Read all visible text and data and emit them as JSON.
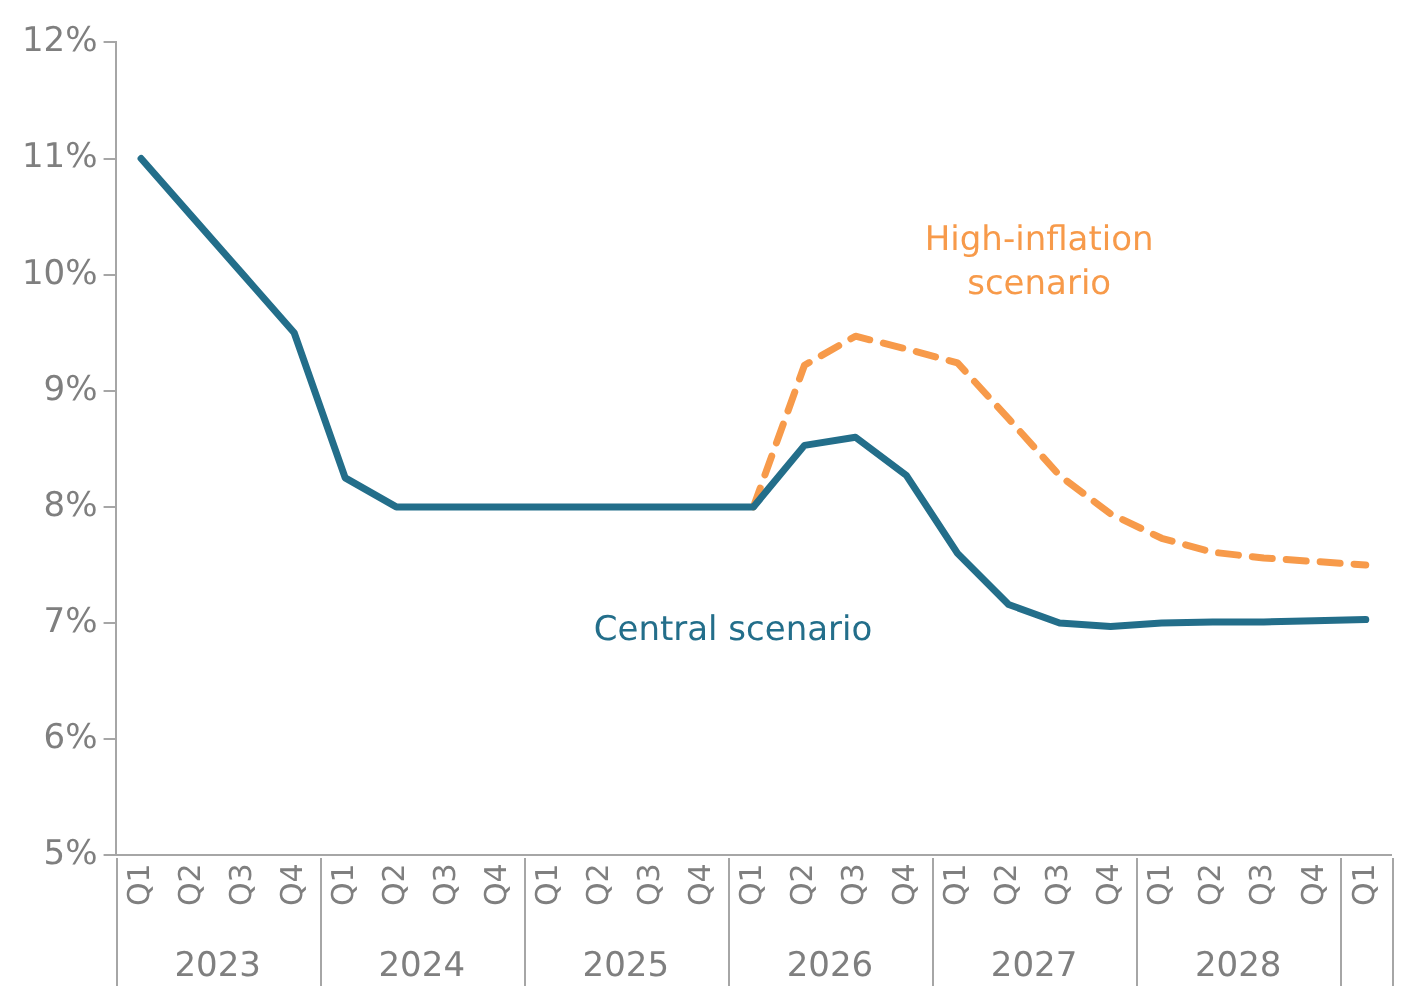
{
  "chart_data": {
    "type": "line",
    "categories": [
      "Q1",
      "Q2",
      "Q3",
      "Q4",
      "Q1",
      "Q2",
      "Q3",
      "Q4",
      "Q1",
      "Q2",
      "Q3",
      "Q4",
      "Q1",
      "Q2",
      "Q3",
      "Q4",
      "Q1",
      "Q2",
      "Q3",
      "Q4",
      "Q1",
      "Q2",
      "Q3",
      "Q4",
      "Q1"
    ],
    "annotations": [
      "2023",
      "2024",
      "2025",
      "2026",
      "2027",
      "2028"
    ],
    "series": [
      {
        "name": "Central scenario",
        "color": "#236e8a",
        "line_style": "solid",
        "values": [
          11.0,
          10.5,
          10.0,
          9.5,
          8.25,
          8.0,
          8.0,
          8.0,
          8.0,
          8.0,
          8.0,
          8.0,
          8.0,
          8.53,
          8.6,
          8.27,
          7.6,
          7.16,
          7.0,
          6.97,
          7.0,
          7.01,
          7.01,
          7.02,
          7.03
        ]
      },
      {
        "name": "High-inflation scenario",
        "color": "#f79a4a",
        "line_style": "dashed",
        "values": [
          null,
          null,
          null,
          null,
          null,
          null,
          null,
          null,
          null,
          null,
          null,
          null,
          8.0,
          9.22,
          9.47,
          9.36,
          9.24,
          8.76,
          8.27,
          7.94,
          7.73,
          7.61,
          7.56,
          7.53,
          7.5
        ]
      }
    ],
    "ylim": [
      5,
      12
    ],
    "yticks": [
      {
        "value": 5,
        "label": "5%"
      },
      {
        "value": 6,
        "label": "6%"
      },
      {
        "value": 7,
        "label": "7%"
      },
      {
        "value": 8,
        "label": "8%"
      },
      {
        "value": 9,
        "label": "9%"
      },
      {
        "value": 10,
        "label": "10%"
      },
      {
        "value": 11,
        "label": "11%"
      },
      {
        "value": 12,
        "label": "12%"
      }
    ],
    "grid": false,
    "legend": false,
    "marker": "none"
  }
}
